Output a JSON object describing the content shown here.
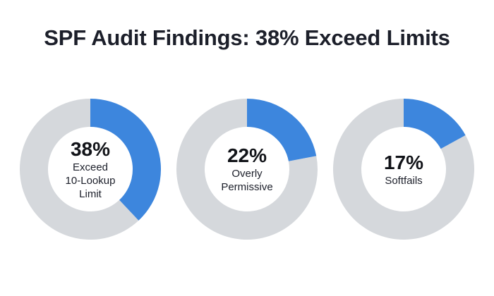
{
  "title": "SPF Audit Findings: 38% Exceed Limits",
  "colors": {
    "filled": "#3d86dd",
    "track": "#d5d8dc",
    "center": "#ffffff"
  },
  "chart_data": [
    {
      "type": "pie",
      "value": 38,
      "value_label": "38%",
      "label": "Exceed\n10-Lookup\nLimit"
    },
    {
      "type": "pie",
      "value": 22,
      "value_label": "22%",
      "label": "Overly\nPermissive"
    },
    {
      "type": "pie",
      "value": 17,
      "value_label": "17%",
      "label": "Softfails"
    }
  ]
}
